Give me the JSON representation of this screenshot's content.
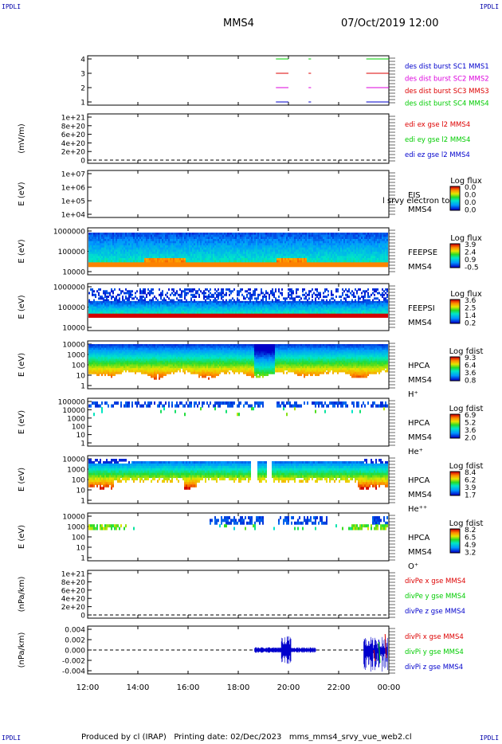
{
  "corner_label": "IPDLI",
  "header": {
    "spacecraft": "MMS4",
    "datetime": "07/Oct/2019 12:00"
  },
  "footer": "Produced by cl (IRAP)   Printing date: 02/Dec/2023   mms_mms4_srvy_vue_web2.cl",
  "colors": {
    "red": "#dd0000",
    "green": "#00cc00",
    "blue": "#0000cc",
    "magenta": "#dd00dd",
    "orange": "#ff8c00"
  },
  "time_axis": {
    "ticks": [
      "12:00",
      "14:00",
      "16:00",
      "18:00",
      "20:00",
      "22:00",
      "00:00"
    ],
    "range_hours": [
      12,
      24
    ]
  },
  "chart_data": [
    {
      "id": "burst",
      "type": "line",
      "ylim": [
        0.5,
        4.5
      ],
      "yticks": [
        "1",
        "2",
        "3",
        "4"
      ],
      "legend": [
        {
          "text": "des dist burst SC1 MMS1",
          "color": "blue"
        },
        {
          "text": "des dist burst SC2 MMS2",
          "color": "magenta"
        },
        {
          "text": "des dist burst SC3 MMS3",
          "color": "red"
        },
        {
          "text": "des dist burst SC4 MMS4",
          "color": "green"
        }
      ],
      "intervals": [
        [
          19.5,
          20.0
        ],
        [
          20.8,
          20.9
        ],
        [
          23.1,
          24.0
        ]
      ]
    },
    {
      "id": "edi",
      "type": "line",
      "ylabel": "(mV/m)",
      "ylim": [
        0,
        1e+21
      ],
      "yticks": [
        "1e+21",
        "8e+20",
        "6e+20",
        "4e+20",
        "2e+20",
        "0"
      ],
      "legend": [
        {
          "text": "edi ex gse l2 MMS4",
          "color": "red"
        },
        {
          "text": "edi ey gse l2 MMS4",
          "color": "green"
        },
        {
          "text": "edi ez gse l2 MMS4",
          "color": "blue"
        }
      ]
    },
    {
      "id": "eis",
      "type": "heatmap",
      "ylabel": "E (eV)",
      "yticks": [
        "1e+07",
        "1e+06",
        "1e+05",
        "1e+04"
      ],
      "labels": [
        "EIS",
        "MMS4"
      ],
      "overlap_text": "l srvy electron to",
      "colorbar": {
        "title": "Log flux",
        "ticks": [
          "0.0",
          "0.0",
          "0.0",
          "0.0"
        ]
      }
    },
    {
      "id": "feeps_e",
      "type": "heatmap",
      "ylabel": "E (eV)",
      "yticks": [
        "1000000",
        "100000",
        "10000"
      ],
      "labels": [
        "FEEPSE",
        "MMS4"
      ],
      "colorbar": {
        "title": "Log flux",
        "ticks": [
          "3.9",
          "2.4",
          "0.9",
          "-0.5"
        ]
      }
    },
    {
      "id": "feeps_i",
      "type": "heatmap",
      "ylabel": "E (eV)",
      "yticks": [
        "1000000",
        "100000",
        "10000"
      ],
      "labels": [
        "FEEPSI",
        "MMS4"
      ],
      "colorbar": {
        "title": "Log flux",
        "ticks": [
          "3.6",
          "2.5",
          "1.4",
          "0.2"
        ]
      }
    },
    {
      "id": "hpca_h",
      "type": "heatmap",
      "ylabel": "E (eV)",
      "yticks": [
        "10000",
        "1000",
        "100",
        "10",
        "1"
      ],
      "labels": [
        "HPCA",
        "MMS4",
        "H⁺"
      ],
      "colorbar": {
        "title": "Log fdist",
        "ticks": [
          "9.3",
          "6.4",
          "3.6",
          "0.8"
        ]
      }
    },
    {
      "id": "hpca_he",
      "type": "heatmap",
      "ylabel": "E (eV)",
      "yticks": [
        "100000",
        "10000",
        "1000",
        "100",
        "10",
        "1"
      ],
      "labels": [
        "HPCA",
        "MMS4",
        "He⁺"
      ],
      "colorbar": {
        "title": "Log fdist",
        "ticks": [
          "6.9",
          "5.2",
          "3.6",
          "2.0"
        ]
      }
    },
    {
      "id": "hpca_hepp",
      "type": "heatmap",
      "ylabel": "E (eV)",
      "yticks": [
        "10000",
        "1000",
        "100",
        "10",
        "1"
      ],
      "labels": [
        "HPCA",
        "MMS4",
        "He⁺⁺"
      ],
      "colorbar": {
        "title": "Log fdist",
        "ticks": [
          "8.4",
          "6.2",
          "3.9",
          "1.7"
        ]
      }
    },
    {
      "id": "hpca_o",
      "type": "heatmap",
      "ylabel": "E (eV)",
      "yticks": [
        "10000",
        "1000",
        "100",
        "10",
        "1"
      ],
      "labels": [
        "HPCA",
        "MMS4",
        "O⁺"
      ],
      "colorbar": {
        "title": "Log fdist",
        "ticks": [
          "8.2",
          "6.5",
          "4.9",
          "3.2"
        ]
      }
    },
    {
      "id": "divpe",
      "type": "line",
      "ylabel": "(nPa/km)",
      "ylim": [
        0,
        1e+21
      ],
      "yticks": [
        "1e+21",
        "8e+20",
        "6e+20",
        "4e+20",
        "2e+20",
        "0"
      ],
      "legend": [
        {
          "text": "divPe x gse MMS4",
          "color": "red"
        },
        {
          "text": "divPe y gse MMS4",
          "color": "green"
        },
        {
          "text": "divPe z gse MMS4",
          "color": "blue"
        }
      ]
    },
    {
      "id": "divpi",
      "type": "line",
      "ylabel": "(nPa/km)",
      "ylim": [
        -0.005,
        0.005
      ],
      "yticks": [
        "0.004",
        "0.002",
        "0.000",
        "-0.002",
        "-0.004"
      ],
      "legend": [
        {
          "text": "divPi x gse MMS4",
          "color": "red"
        },
        {
          "text": "divPi y gse MMS4",
          "color": "green"
        },
        {
          "text": "divPi z gse MMS4",
          "color": "blue"
        }
      ]
    }
  ]
}
